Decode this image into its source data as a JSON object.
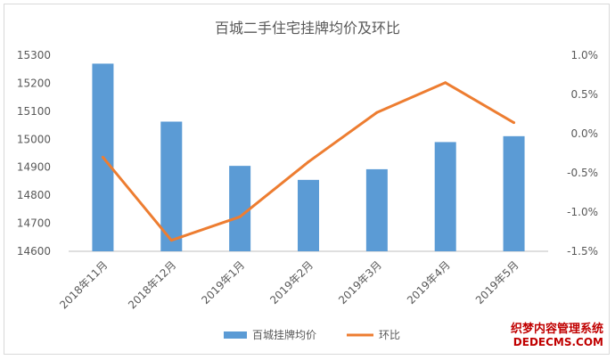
{
  "chart_data": {
    "type": "bar",
    "title": "百城二手住宅挂牌均价及环比",
    "categories": [
      "2018年11月",
      "2018年12月",
      "2019年1月",
      "2019年2月",
      "2019年3月",
      "2019年4月",
      "2019年5月"
    ],
    "series": [
      {
        "name": "百城挂牌均价",
        "kind": "bar",
        "axis": "left",
        "color": "#5b9bd5",
        "values": [
          15270,
          15063,
          14905,
          14855,
          14893,
          14990,
          15011
        ]
      },
      {
        "name": "环比",
        "kind": "line",
        "axis": "right",
        "color": "#ed7d31",
        "values": [
          -0.3,
          -1.36,
          -1.06,
          -0.36,
          0.27,
          0.65,
          0.14
        ]
      }
    ],
    "ylim_left": [
      14600,
      15300
    ],
    "yticks_left": [
      14600,
      14700,
      14800,
      14900,
      15000,
      15100,
      15200,
      15300
    ],
    "ylim_right": [
      -1.5,
      1.0
    ],
    "yticks_right": [
      "-1.5%",
      "-1.0%",
      "-0.5%",
      "0.0%",
      "0.5%",
      "1.0%"
    ],
    "yticks_right_values": [
      -1.5,
      -1.0,
      -0.5,
      0.0,
      0.5,
      1.0
    ],
    "grid": false,
    "legend_placement": "bottom"
  },
  "watermark": {
    "line1": "织梦内容管理系统",
    "line2": "DEDECMS.COM"
  }
}
